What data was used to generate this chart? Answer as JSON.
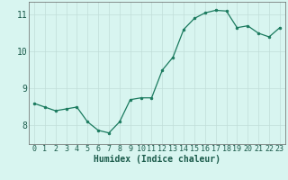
{
  "x": [
    0,
    1,
    2,
    3,
    4,
    5,
    6,
    7,
    8,
    9,
    10,
    11,
    12,
    13,
    14,
    15,
    16,
    17,
    18,
    19,
    20,
    21,
    22,
    23
  ],
  "y": [
    8.6,
    8.5,
    8.4,
    8.45,
    8.5,
    8.1,
    7.87,
    7.8,
    8.1,
    8.7,
    8.75,
    8.75,
    9.5,
    9.85,
    10.6,
    10.9,
    11.05,
    11.12,
    11.1,
    10.65,
    10.7,
    10.5,
    10.4,
    10.65
  ],
  "xlabel": "Humidex (Indice chaleur)",
  "ylim": [
    7.5,
    11.35
  ],
  "xlim": [
    -0.5,
    23.5
  ],
  "yticks": [
    8,
    9,
    10,
    11
  ],
  "xticks": [
    0,
    1,
    2,
    3,
    4,
    5,
    6,
    7,
    8,
    9,
    10,
    11,
    12,
    13,
    14,
    15,
    16,
    17,
    18,
    19,
    20,
    21,
    22,
    23
  ],
  "line_color": "#1a7a5e",
  "marker_color": "#1a7a5e",
  "bg_color": "#d8f5f0",
  "grid_color": "#c0ddd8",
  "axis_color": "#666666",
  "tick_label_color": "#1a5a4a",
  "xlabel_color": "#1a5a4a",
  "font_size_axis": 7,
  "font_size_tick": 6,
  "font_size_ytick": 7
}
